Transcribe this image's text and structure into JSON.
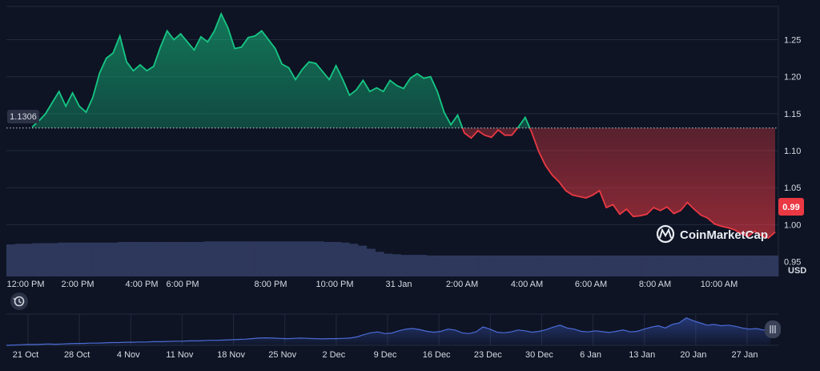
{
  "chart_data": {
    "type": "area",
    "title": "",
    "xlabel": "",
    "ylabel": "USD",
    "ylim": [
      0.93,
      1.295
    ],
    "y_ticks": [
      1.25,
      1.2,
      1.15,
      1.1,
      1.05,
      1.0,
      0.95
    ],
    "baseline": {
      "value": 1.1306,
      "label": "1.1306"
    },
    "current_price": {
      "value": 0.99,
      "label": "0.99"
    },
    "x_ticks": [
      "12:00 PM",
      "2:00 PM",
      "4:00 PM",
      "6:00 PM",
      "8:00 PM",
      "10:00 PM",
      "31 Jan",
      "2:00 AM",
      "4:00 AM",
      "6:00 AM",
      "8:00 AM",
      "10:00 AM"
    ],
    "x_range": [
      "30 Jan 11:00 AM",
      "31 Jan 11:30 AM"
    ],
    "series": [
      {
        "values": [
          1.132,
          1.14,
          1.15,
          1.165,
          1.18,
          1.16,
          1.178,
          1.16,
          1.152,
          1.172,
          1.205,
          1.225,
          1.232,
          1.255,
          1.22,
          1.208,
          1.216,
          1.208,
          1.214,
          1.24,
          1.262,
          1.25,
          1.258,
          1.247,
          1.236,
          1.254,
          1.247,
          1.262,
          1.285,
          1.266,
          1.238,
          1.24,
          1.253,
          1.255,
          1.262,
          1.25,
          1.238,
          1.217,
          1.212,
          1.196,
          1.21,
          1.22,
          1.218,
          1.207,
          1.196,
          1.215,
          1.196,
          1.175,
          1.182,
          1.195,
          1.18,
          1.185,
          1.18,
          1.195,
          1.188,
          1.184,
          1.198,
          1.204,
          1.198,
          1.2,
          1.18,
          1.152,
          1.135,
          1.148,
          1.124,
          1.117,
          1.127,
          1.121,
          1.118,
          1.128,
          1.121,
          1.121,
          1.132,
          1.145,
          1.124,
          1.099,
          1.08,
          1.067,
          1.058,
          1.046,
          1.04,
          1.038,
          1.036,
          1.04,
          1.046,
          1.023,
          1.027,
          1.014,
          1.021,
          1.011,
          1.012,
          1.014,
          1.023,
          1.019,
          1.024,
          1.015,
          1.019,
          1.03,
          1.021,
          1.013,
          1.009,
          1.001,
          0.998,
          0.996,
          0.993,
          0.988,
          0.984,
          0.991,
          0.985,
          0.982,
          0.99
        ]
      }
    ],
    "volume": {
      "values": [
        0.52,
        0.53,
        0.53,
        0.54,
        0.54,
        0.54,
        0.55,
        0.55,
        0.55,
        0.55,
        0.55,
        0.55,
        0.55,
        0.56,
        0.56,
        0.56,
        0.56,
        0.56,
        0.56,
        0.56,
        0.56,
        0.56,
        0.56,
        0.57,
        0.57,
        0.57,
        0.57,
        0.57,
        0.57,
        0.57,
        0.57,
        0.57,
        0.57,
        0.57,
        0.57,
        0.57,
        0.57,
        0.56,
        0.56,
        0.55,
        0.53,
        0.5,
        0.45,
        0.4,
        0.37,
        0.36,
        0.35,
        0.35,
        0.35,
        0.34,
        0.34,
        0.34,
        0.34,
        0.34,
        0.34,
        0.34,
        0.34,
        0.34,
        0.34,
        0.34,
        0.34,
        0.34,
        0.34,
        0.34,
        0.34,
        0.34,
        0.34,
        0.34,
        0.34,
        0.34,
        0.34,
        0.34,
        0.34,
        0.34,
        0.34,
        0.34,
        0.34,
        0.34,
        0.34,
        0.34,
        0.34,
        0.34,
        0.34,
        0.34,
        0.34,
        0.34,
        0.34,
        0.34,
        0.34,
        0.34
      ]
    },
    "overview": {
      "x_ticks": [
        "21 Oct",
        "28 Oct",
        "4 Nov",
        "11 Nov",
        "18 Nov",
        "25 Nov",
        "2 Dec",
        "9 Dec",
        "16 Dec",
        "23 Dec",
        "30 Dec",
        "6 Jan",
        "13 Jan",
        "20 Jan",
        "27 Jan"
      ],
      "values": [
        0.0,
        0.01,
        0.02,
        0.03,
        0.03,
        0.04,
        0.05,
        0.04,
        0.05,
        0.06,
        0.07,
        0.07,
        0.08,
        0.08,
        0.09,
        0.1,
        0.1,
        0.11,
        0.11,
        0.12,
        0.12,
        0.13,
        0.13,
        0.14,
        0.15,
        0.15,
        0.16,
        0.16,
        0.17,
        0.18,
        0.18,
        0.19,
        0.2,
        0.21,
        0.22,
        0.24,
        0.26,
        0.27,
        0.26,
        0.25,
        0.24,
        0.25,
        0.26,
        0.25,
        0.24,
        0.23,
        0.24,
        0.24,
        0.25,
        0.26,
        0.3,
        0.38,
        0.45,
        0.48,
        0.42,
        0.44,
        0.52,
        0.58,
        0.6,
        0.56,
        0.5,
        0.47,
        0.5,
        0.58,
        0.55,
        0.45,
        0.42,
        0.48,
        0.66,
        0.58,
        0.47,
        0.45,
        0.48,
        0.55,
        0.52,
        0.47,
        0.5,
        0.56,
        0.65,
        0.72,
        0.62,
        0.58,
        0.5,
        0.48,
        0.52,
        0.49,
        0.46,
        0.5,
        0.55,
        0.48,
        0.5,
        0.58,
        0.65,
        0.7,
        0.62,
        0.75,
        0.8,
        0.98,
        0.88,
        0.8,
        0.72,
        0.75,
        0.7,
        0.72,
        0.68,
        0.62,
        0.58,
        0.6,
        0.55,
        0.58
      ]
    },
    "watermark": "CoinMarketCap",
    "grid": true,
    "colors": {
      "background": "#0e1424",
      "up": "#16c784",
      "down": "#ea3943",
      "volume": "#2e385c",
      "overview_line": "#4b6bd6",
      "grid": "#222a3d"
    }
  }
}
